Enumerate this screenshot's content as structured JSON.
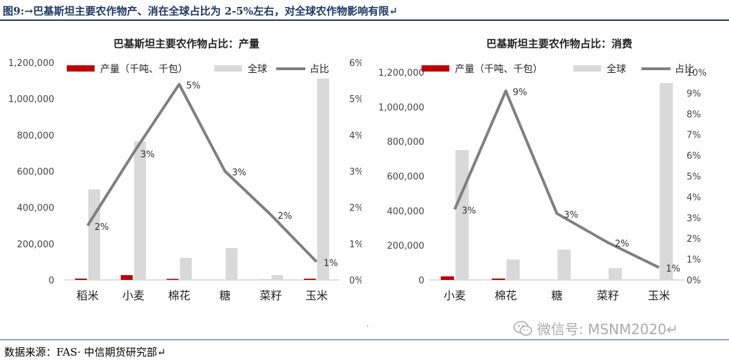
{
  "figure": {
    "title": "图9:→巴基斯坦主要农作物产、消在全球占比为 2-5%左右，对全球农作物影响有限↵",
    "source": "数据来源：FAS· 中信期货研究部↵",
    "watermark": "微信号: MSNM2020↵"
  },
  "colors": {
    "production": "#c00000",
    "global": "#d9d9d9",
    "share": "#7f7f7f",
    "header_rule": "#1f3864"
  },
  "chart_data": [
    {
      "type": "bar",
      "title": "巴基斯坦主要农作物占比：产量",
      "categories": [
        "稻米",
        "小麦",
        "棉花",
        "糖",
        "菜籽",
        "玉米"
      ],
      "series": [
        {
          "name": "产量（千吨、千包）",
          "kind": "bar",
          "axis": "left",
          "values": [
            7500,
            26500,
            6000,
            0,
            500,
            7000
          ]
        },
        {
          "name": "全球",
          "kind": "bar",
          "axis": "left",
          "values": [
            500000,
            765000,
            122000,
            176000,
            27000,
            1112000
          ]
        },
        {
          "name": "占比",
          "kind": "line",
          "axis": "right",
          "values": [
            1.5,
            3.5,
            5.4,
            3.0,
            1.8,
            0.5
          ],
          "labels": [
            "2%",
            "3%",
            "5%",
            "3%",
            "2%",
            "1%"
          ]
        }
      ],
      "y_left": {
        "min": 0,
        "max": 1200000,
        "ticks": [
          "0",
          "200,000",
          "400,000",
          "600,000",
          "800,000",
          "1,000,000",
          "1,200,000"
        ]
      },
      "y_right": {
        "min": 0,
        "max": 6,
        "ticks": [
          "0%",
          "1%",
          "2%",
          "3%",
          "4%",
          "5%",
          "6%"
        ]
      },
      "legend": "top",
      "grid": false
    },
    {
      "type": "bar",
      "title": "巴基斯坦主要农作物占比：消费",
      "categories": [
        "小麦",
        "棉花",
        "糖",
        "菜籽",
        "玉米"
      ],
      "series": [
        {
          "name": "产量（千吨、千包）",
          "kind": "bar",
          "axis": "left",
          "values": [
            21000,
            8000,
            0,
            0,
            0
          ]
        },
        {
          "name": "全球",
          "kind": "bar",
          "axis": "left",
          "values": [
            750000,
            118000,
            175000,
            68000,
            1138000
          ]
        },
        {
          "name": "占比",
          "kind": "line",
          "axis": "right",
          "values": [
            3.4,
            9.1,
            3.2,
            1.8,
            0.6
          ],
          "labels": [
            "3%",
            "9%",
            "3%",
            "2%",
            "1%"
          ]
        }
      ],
      "y_left": {
        "min": 0,
        "max": 1200000,
        "ticks": [
          "0",
          "200,000",
          "400,000",
          "600,000",
          "800,000",
          "1,000,000",
          "1,200,000"
        ]
      },
      "y_right": {
        "min": 0,
        "max": 10,
        "ticks": [
          "0%",
          "1%",
          "2%",
          "3%",
          "4%",
          "5%",
          "6%",
          "7%",
          "8%",
          "9%",
          "10%"
        ]
      },
      "legend": "top",
      "grid": false
    }
  ]
}
